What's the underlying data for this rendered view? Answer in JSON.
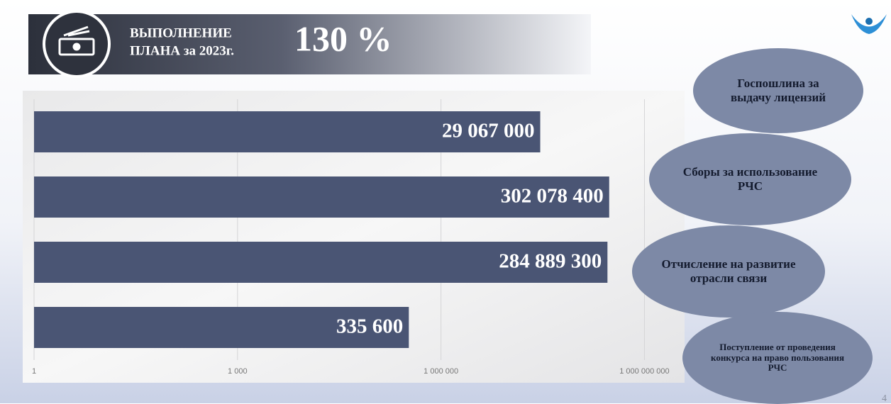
{
  "header": {
    "title_lines": [
      "ВЫПОЛНЕНИЕ",
      "ПЛАНА за 2023г."
    ],
    "headline": "130 %"
  },
  "page_number": "4",
  "chart_data": {
    "type": "bar",
    "orientation": "horizontal",
    "log_scale": true,
    "categories": [
      "Госпошлина за выдачу лицензий",
      "Сборы за использование РЧС",
      "Отчисление на развитие отрасли связи",
      "Поступление от проведения конкурса на право пользования РЧС"
    ],
    "values": [
      29067000,
      302078400,
      284889300,
      335600
    ],
    "value_labels": [
      "29 067 000",
      "302 078 400",
      "284 889 300",
      "335 600"
    ],
    "color": "#4a5574",
    "xlim": [
      1,
      4000000000
    ],
    "xticks": [
      1,
      {
        "value": 1000,
        "label": "1 000"
      },
      {
        "value": 1000000,
        "label": "1 000 000"
      },
      {
        "value": 1000000000,
        "label": "1 000 000 000"
      }
    ],
    "grid": true
  }
}
